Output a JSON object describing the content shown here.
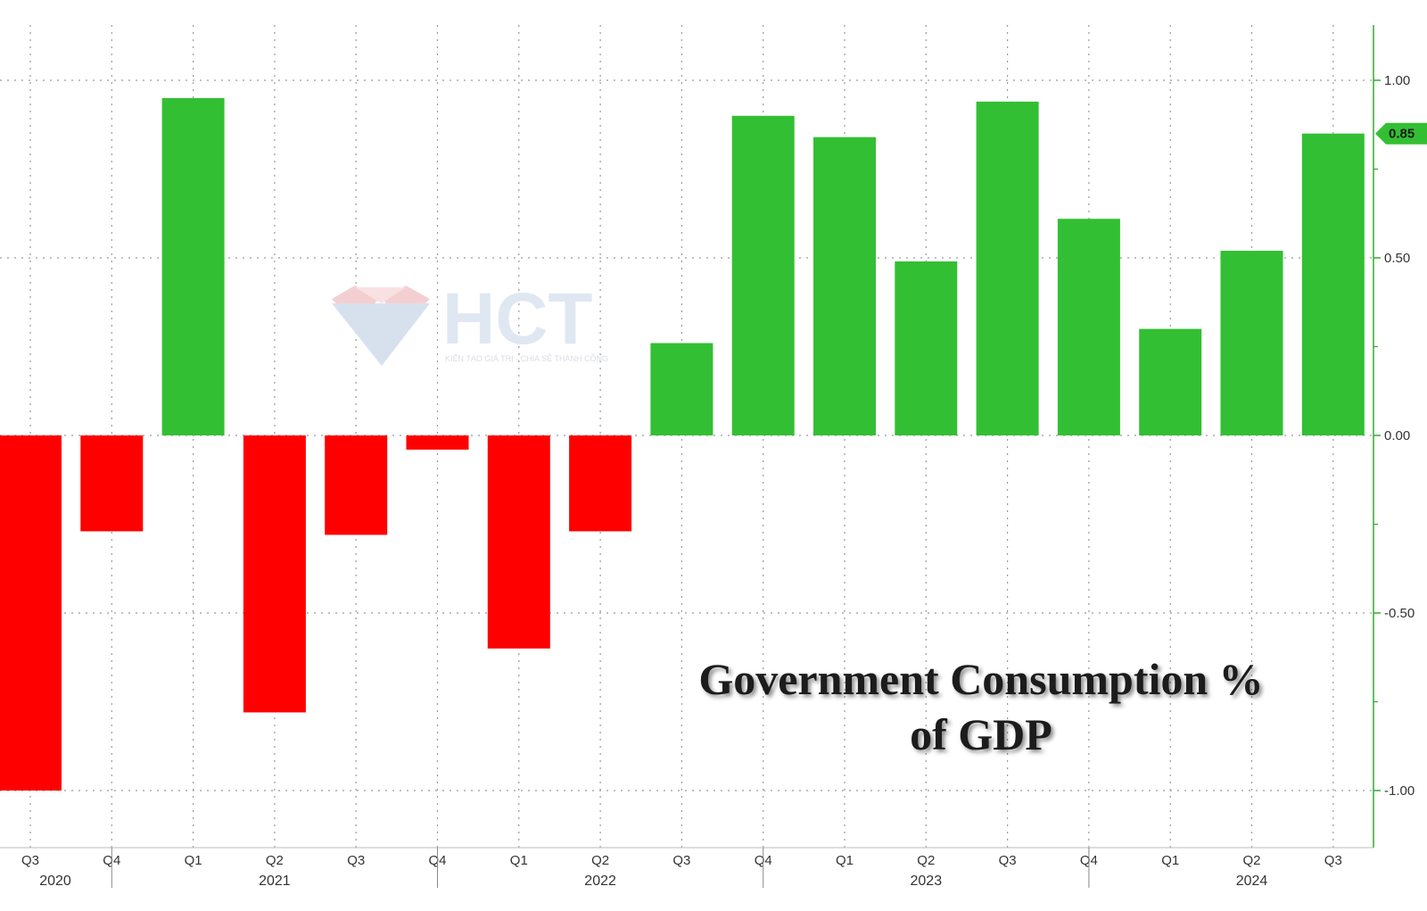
{
  "chart_data": {
    "type": "bar",
    "title": "Government Consumption % of GDP",
    "title_lines": [
      "Government Consumption %",
      "of GDP"
    ],
    "categories": [
      "Q3",
      "Q4",
      "Q1",
      "Q2",
      "Q3",
      "Q4",
      "Q1",
      "Q2",
      "Q3",
      "Q4",
      "Q1",
      "Q2",
      "Q3",
      "Q4",
      "Q1",
      "Q2",
      "Q3"
    ],
    "periods": [
      "2020 Q3",
      "2020 Q4",
      "2021 Q1",
      "2021 Q2",
      "2021 Q3",
      "2021 Q4",
      "2022 Q1",
      "2022 Q2",
      "2022 Q3",
      "2022 Q4",
      "2023 Q1",
      "2023 Q2",
      "2023 Q3",
      "2023 Q4",
      "2024 Q1",
      "2024 Q2",
      "2024 Q3"
    ],
    "values": [
      -1.0,
      -0.27,
      0.95,
      -0.78,
      -0.28,
      -0.04,
      -0.6,
      -0.27,
      0.26,
      0.9,
      0.84,
      0.49,
      0.94,
      0.61,
      0.3,
      0.52,
      0.85
    ],
    "years": [
      {
        "label": "2020",
        "quarter_index": 0
      },
      {
        "label": "2021",
        "quarter_index": 3
      },
      {
        "label": "2022",
        "quarter_index": 7
      },
      {
        "label": "2023",
        "quarter_index": 11
      },
      {
        "label": "2024",
        "quarter_index": 15
      }
    ],
    "y_ticks": [
      "1.00",
      "0.50",
      "0.00",
      "-0.50",
      "-1.00"
    ],
    "y_tick_values": [
      1.0,
      0.5,
      0.0,
      -0.5,
      -1.0
    ],
    "ylim": [
      -1.16,
      1.16
    ],
    "last_value_label": "0.85",
    "y_axis_side": "right",
    "grid": true,
    "positive_color": "#33bf33",
    "negative_color": "#ff0000",
    "axis_color": "#33aa33"
  },
  "watermark": {
    "brand": "HCT",
    "tagline": "KIẾN TẠO GIÁ TRỊ - CHIA SẺ THÀNH CÔNG"
  }
}
